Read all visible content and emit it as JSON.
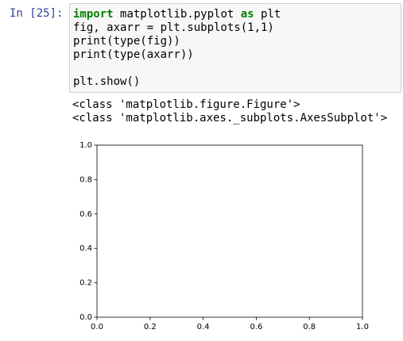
{
  "cell": {
    "prompt": "In [25]:",
    "code": [
      [
        {
          "text": "import",
          "kw": true
        },
        {
          "text": "matplotlib.pyplot",
          "kw": false
        },
        {
          "text": "as",
          "kw": true
        },
        {
          "text": "plt",
          "kw": false
        }
      ],
      [
        {
          "text": "fig, axarr = plt.subplots(1,1)",
          "kw": false
        }
      ],
      [
        {
          "text": "print(type(fig))",
          "kw": false
        }
      ],
      [
        {
          "text": "print(type(axarr))",
          "kw": false
        }
      ],
      [
        {
          "text": "plt.show()",
          "kw": false
        }
      ]
    ],
    "output": [
      "<class 'matplotlib.figure.Figure'>",
      "<class 'matplotlib.axes._subplots.AxesSubplot'>"
    ]
  },
  "chart_data": {
    "type": "empty",
    "xlim": [
      0,
      1
    ],
    "ylim": [
      0,
      1
    ],
    "xticks": [
      {
        "value": 0,
        "label": "0.0"
      },
      0.2,
      0.4,
      0.6,
      0.8,
      {
        "value": 1,
        "label": "1.0"
      }
    ],
    "yticks": [
      {
        "value": 0,
        "label": "0.0"
      },
      0.2,
      0.4,
      0.6,
      0.8,
      {
        "value": 1,
        "label": "1.0"
      }
    ]
  }
}
